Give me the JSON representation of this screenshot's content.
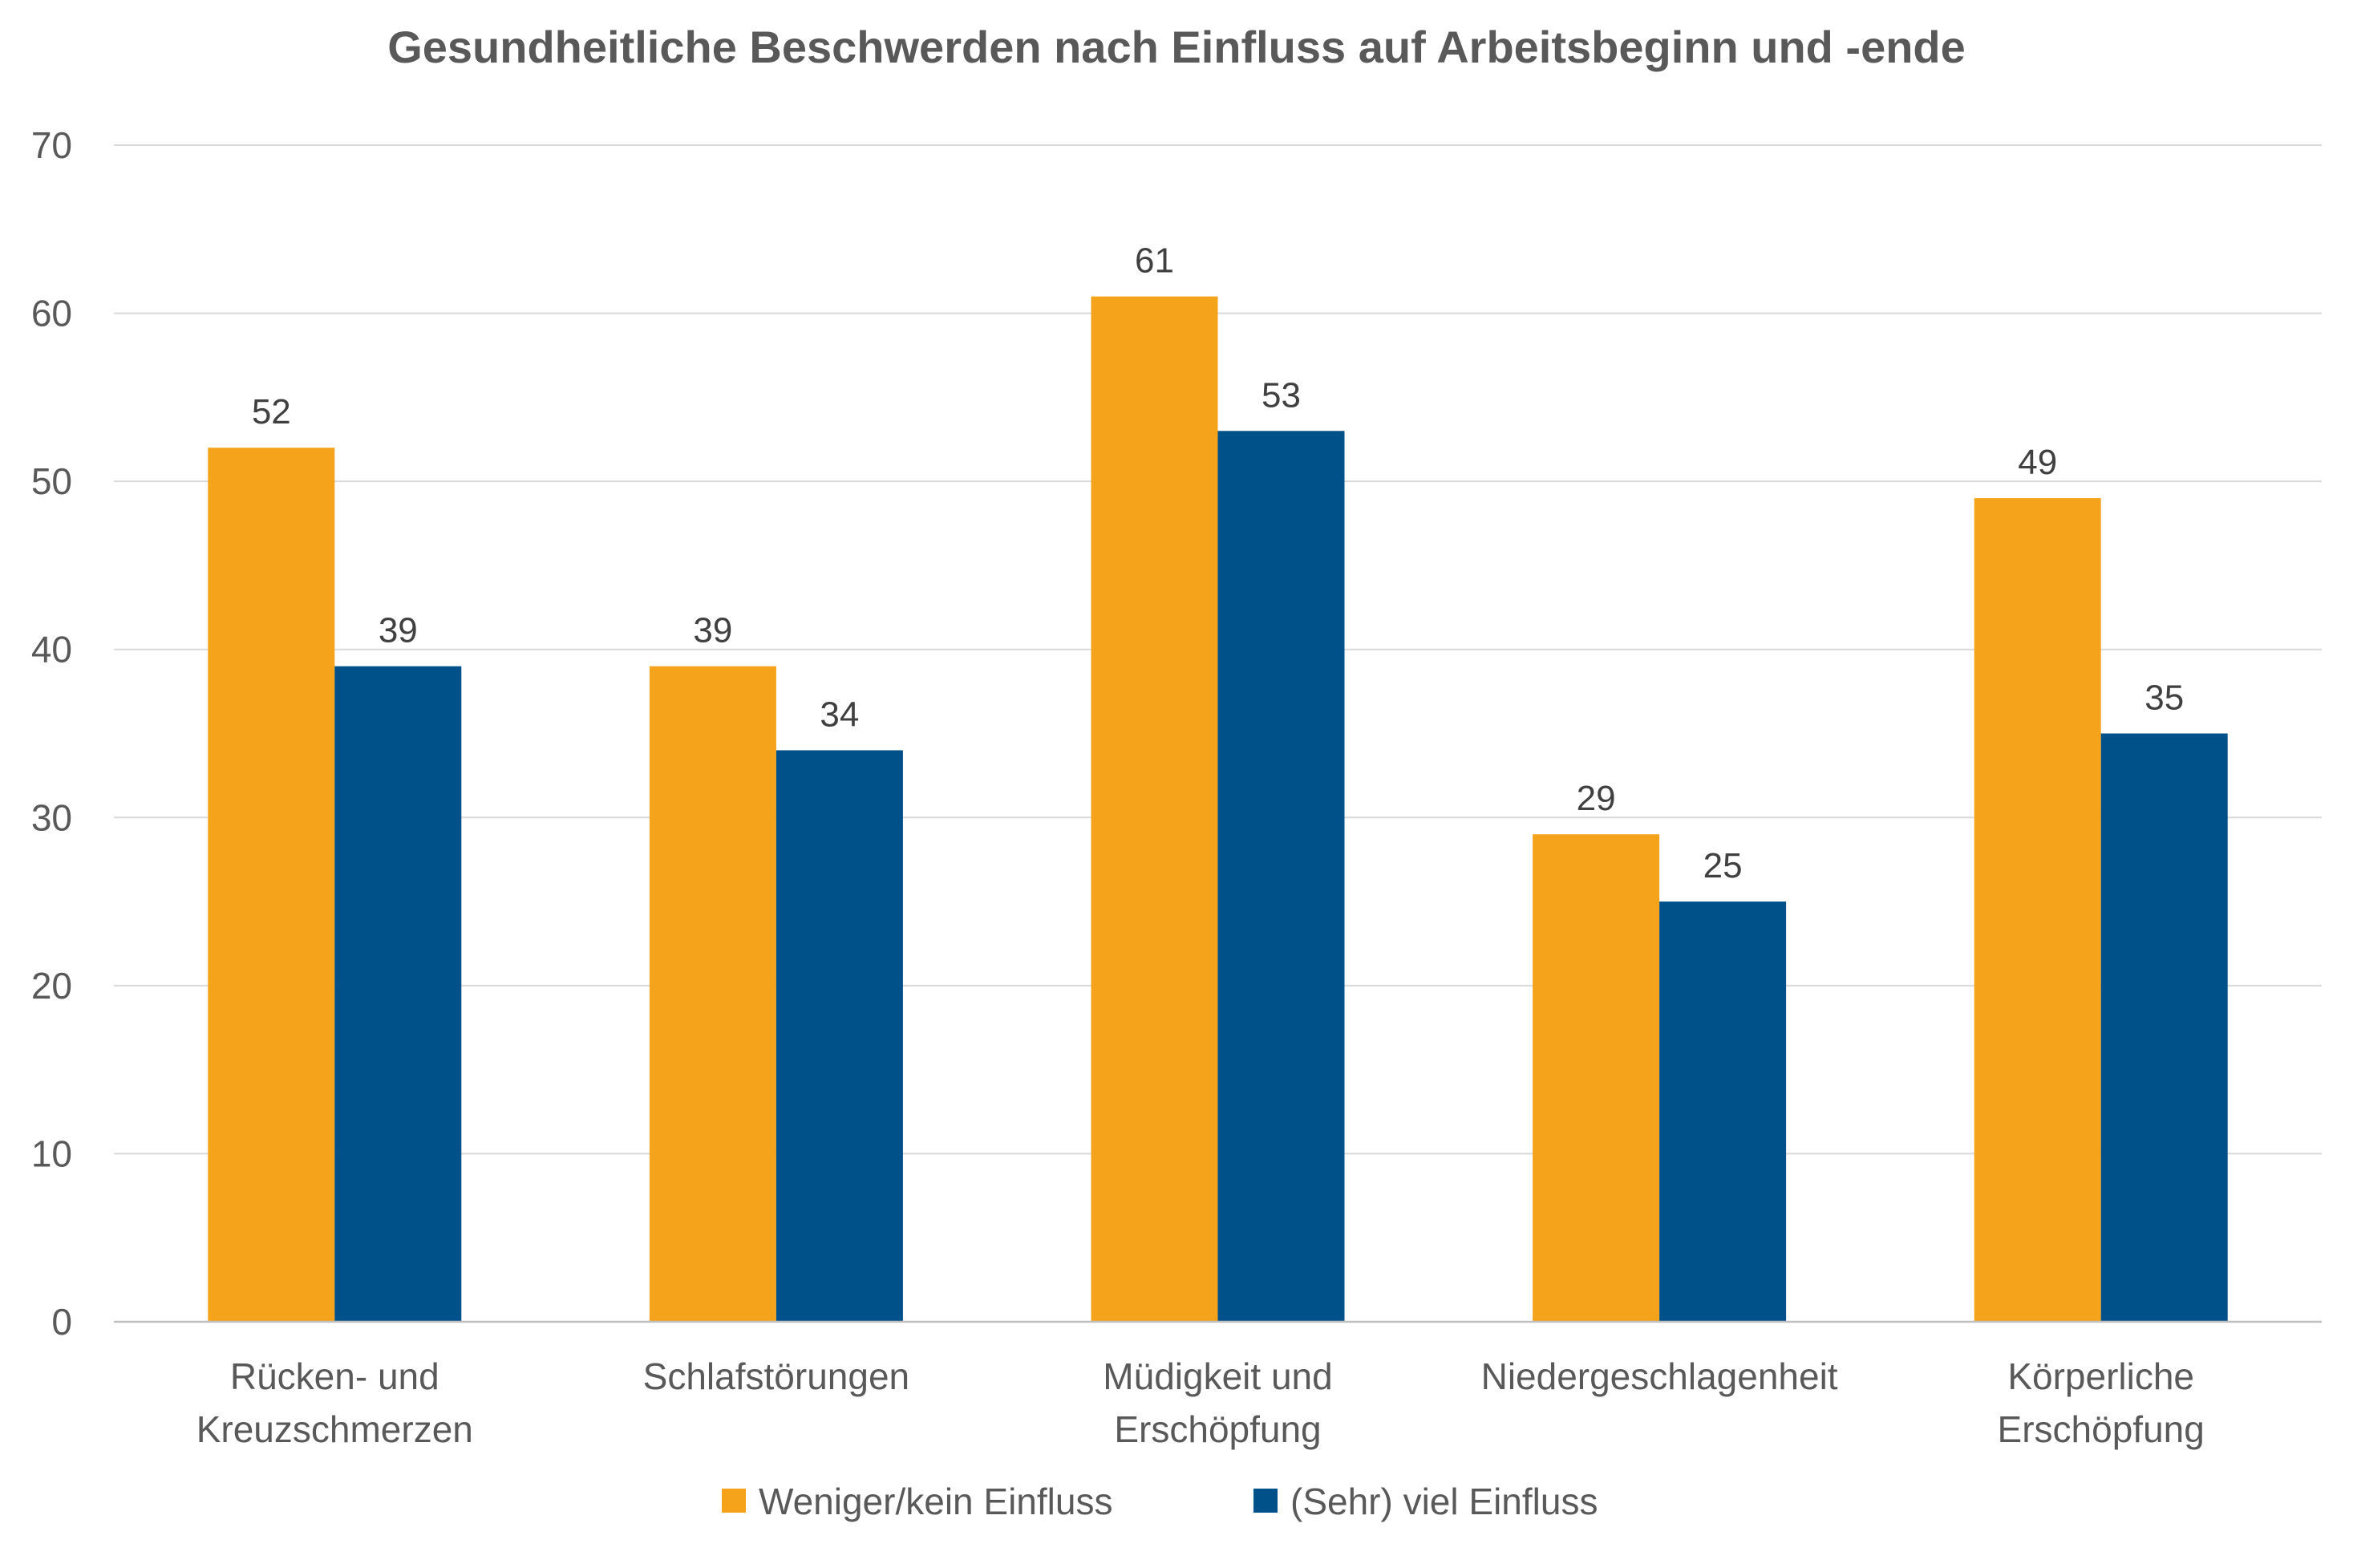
{
  "chart_data": {
    "type": "bar",
    "title": "Gesundheitliche Beschwerden nach Einfluss auf Arbeitsbeginn und -ende",
    "xlabel": "",
    "ylabel": "",
    "ylim": [
      0,
      70
    ],
    "yticks": [
      "0",
      "10",
      "20",
      "30",
      "40",
      "50",
      "60",
      "70"
    ],
    "grid": true,
    "legend_position": "bottom",
    "categories": [
      [
        "Rücken- und",
        "Kreuzschmerzen"
      ],
      [
        "Schlafstörungen"
      ],
      [
        "Müdigkeit und",
        "Erschöpfung"
      ],
      [
        "Niedergeschlagenheit"
      ],
      [
        "Körperliche",
        "Erschöpfung"
      ]
    ],
    "series": [
      {
        "name": "Weniger/kein Einfluss",
        "color": "#F4A31A",
        "values": [
          52,
          39,
          61,
          29,
          49
        ]
      },
      {
        "name": "(Sehr) viel Einfluss",
        "color": "#00508A",
        "values": [
          39,
          34,
          53,
          25,
          35
        ]
      }
    ]
  }
}
